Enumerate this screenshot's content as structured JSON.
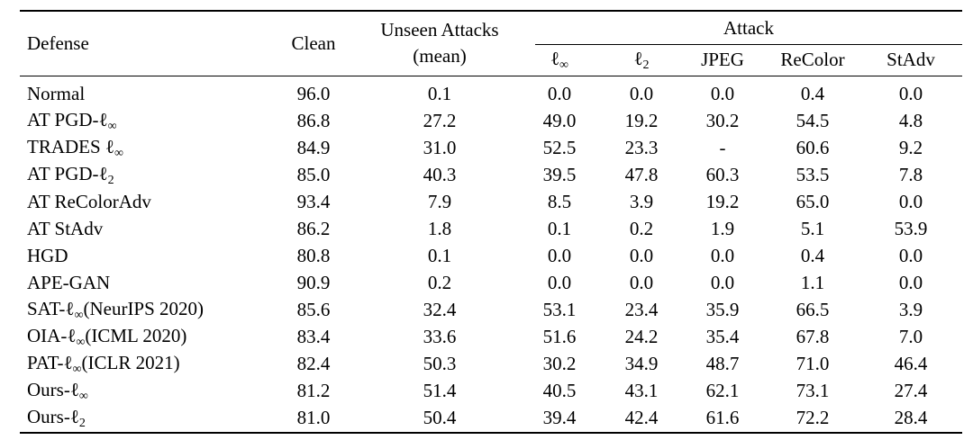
{
  "colors": {
    "text": "#000000",
    "background": "#ffffff",
    "rule": "#000000"
  },
  "table": {
    "header": {
      "defense": "Defense",
      "clean": "Clean",
      "unseen_line1": "Unseen Attacks",
      "unseen_line2": "(mean)",
      "attack_group": "Attack",
      "attack_columns": [
        {
          "segments": [
            {
              "t": "ℓ"
            },
            {
              "t": "∞",
              "sub": true
            }
          ]
        },
        {
          "segments": [
            {
              "t": "ℓ"
            },
            {
              "t": "2",
              "sub": true
            }
          ]
        },
        {
          "segments": [
            {
              "t": "JPEG"
            }
          ]
        },
        {
          "segments": [
            {
              "t": "ReColor"
            }
          ]
        },
        {
          "segments": [
            {
              "t": "StAdv"
            }
          ]
        }
      ]
    },
    "rows": [
      {
        "defense": [
          {
            "t": "Normal"
          }
        ],
        "values": [
          "96.0",
          "0.1",
          "0.0",
          "0.0",
          "0.0",
          "0.4",
          "0.0"
        ]
      },
      {
        "defense": [
          {
            "t": "AT PGD-ℓ"
          },
          {
            "t": "∞",
            "sub": true
          }
        ],
        "values": [
          "86.8",
          "27.2",
          "49.0",
          "19.2",
          "30.2",
          "54.5",
          "4.8"
        ]
      },
      {
        "defense": [
          {
            "t": "TRADES ℓ"
          },
          {
            "t": "∞",
            "sub": true
          }
        ],
        "values": [
          "84.9",
          "31.0",
          "52.5",
          "23.3",
          "-",
          "60.6",
          "9.2"
        ]
      },
      {
        "defense": [
          {
            "t": "AT PGD-ℓ"
          },
          {
            "t": "2",
            "sub": true
          }
        ],
        "values": [
          "85.0",
          "40.3",
          "39.5",
          "47.8",
          "60.3",
          "53.5",
          "7.8"
        ]
      },
      {
        "defense": [
          {
            "t": "AT ReColorAdv"
          }
        ],
        "values": [
          "93.4",
          "7.9",
          "8.5",
          "3.9",
          "19.2",
          "65.0",
          "0.0"
        ]
      },
      {
        "defense": [
          {
            "t": "AT StAdv"
          }
        ],
        "values": [
          "86.2",
          "1.8",
          "0.1",
          "0.2",
          "1.9",
          "5.1",
          "53.9"
        ]
      },
      {
        "defense": [
          {
            "t": "HGD"
          }
        ],
        "values": [
          "80.8",
          "0.1",
          "0.0",
          "0.0",
          "0.0",
          "0.4",
          "0.0"
        ]
      },
      {
        "defense": [
          {
            "t": "APE-GAN"
          }
        ],
        "values": [
          "90.9",
          "0.2",
          "0.0",
          "0.0",
          "0.0",
          "1.1",
          "0.0"
        ]
      },
      {
        "defense": [
          {
            "t": "SAT-ℓ"
          },
          {
            "t": "∞",
            "sub": true
          },
          {
            "t": "(NeurIPS 2020)"
          }
        ],
        "values": [
          "85.6",
          "32.4",
          "53.1",
          "23.4",
          "35.9",
          "66.5",
          "3.9"
        ]
      },
      {
        "defense": [
          {
            "t": "OIA-ℓ"
          },
          {
            "t": "∞",
            "sub": true
          },
          {
            "t": "(ICML 2020)"
          }
        ],
        "values": [
          "83.4",
          "33.6",
          "51.6",
          "24.2",
          "35.4",
          "67.8",
          "7.0"
        ]
      },
      {
        "defense": [
          {
            "t": "PAT-ℓ"
          },
          {
            "t": "∞",
            "sub": true
          },
          {
            "t": "(ICLR 2021)"
          }
        ],
        "values": [
          "82.4",
          "50.3",
          "30.2",
          "34.9",
          "48.7",
          "71.0",
          "46.4"
        ]
      },
      {
        "defense": [
          {
            "t": "Ours-ℓ"
          },
          {
            "t": "∞",
            "sub": true
          }
        ],
        "values": [
          "81.2",
          "51.4",
          "40.5",
          "43.1",
          "62.1",
          "73.1",
          "27.4"
        ]
      },
      {
        "defense": [
          {
            "t": "Ours-ℓ"
          },
          {
            "t": "2",
            "sub": true
          }
        ],
        "values": [
          "81.0",
          "50.4",
          "39.4",
          "42.4",
          "61.6",
          "72.2",
          "28.4"
        ]
      }
    ]
  }
}
